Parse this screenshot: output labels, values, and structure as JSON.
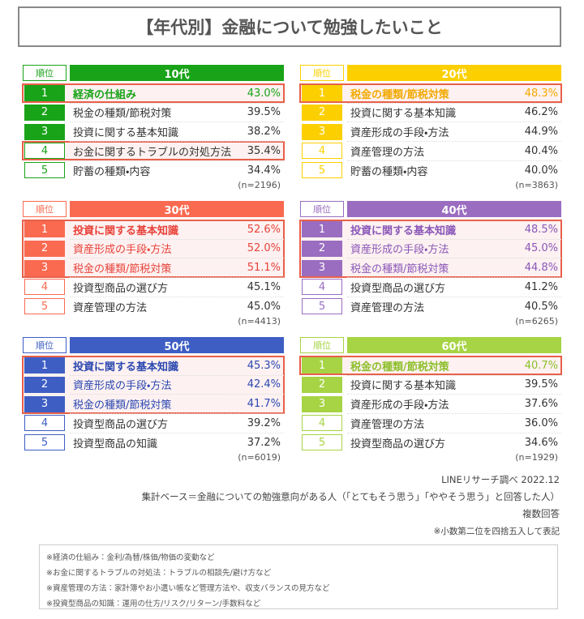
{
  "header": {
    "title": "【年代別】金融について勉強したいこと"
  },
  "panels": [
    {
      "rank_label": "順位",
      "age": "10代",
      "color": "#19a319",
      "text_color": "#19a319",
      "highlighted_rows": [
        [
          0,
          0
        ],
        [
          3,
          3
        ]
      ],
      "emphasized_rows": [
        0
      ],
      "n": "(n=2196)",
      "rows": [
        [
          "1",
          "経済の仕組み",
          "43.0%"
        ],
        [
          "2",
          "税金の種類/節税対策",
          "39.5%"
        ],
        [
          "3",
          "投資に関する基本知識",
          "38.2%"
        ],
        [
          "4",
          "お金に関するトラブルの対処方法",
          "35.4%"
        ],
        [
          "5",
          "貯蓄の種類・内容",
          "34.4%"
        ]
      ]
    },
    {
      "rank_label": "順位",
      "age": "20代",
      "color": "#fcd000",
      "text_color": "#f2a900",
      "highlighted_rows": [
        [
          0,
          0
        ]
      ],
      "emphasized_rows": [
        0
      ],
      "n": "(n=3863)",
      "rows": [
        [
          "1",
          "税金の種類/節税対策",
          "48.3%"
        ],
        [
          "2",
          "投資に関する基本知識",
          "46.2%"
        ],
        [
          "3",
          "資産形成の手段・方法",
          "44.9%"
        ],
        [
          "4",
          "資産管理の方法",
          "40.4%"
        ],
        [
          "5",
          "貯蓄の種類・内容",
          "40.0%"
        ]
      ]
    },
    {
      "rank_label": "順位",
      "age": "30代",
      "color": "#f96a51",
      "text_color": "#e8433a",
      "highlighted_rows": [
        [
          0,
          2
        ]
      ],
      "emphasized_rows": [
        0
      ],
      "n": "(n=4413)",
      "rows": [
        [
          "1",
          "投資に関する基本知識",
          "52.6%"
        ],
        [
          "2",
          "資産形成の手段・方法",
          "52.0%"
        ],
        [
          "3",
          "税金の種類/節税対策",
          "51.1%"
        ],
        [
          "4",
          "投資型商品の選び方",
          "45.1%"
        ],
        [
          "5",
          "資産管理の方法",
          "45.0%"
        ]
      ]
    },
    {
      "rank_label": "順位",
      "age": "40代",
      "color": "#9a6dc0",
      "text_color": "#8a58b8",
      "highlighted_rows": [
        [
          0,
          2
        ]
      ],
      "emphasized_rows": [
        0
      ],
      "n": "(n=6265)",
      "rows": [
        [
          "1",
          "投資に関する基本知識",
          "48.5%"
        ],
        [
          "2",
          "資産形成の手段・方法",
          "45.0%"
        ],
        [
          "3",
          "税金の種類/節税対策",
          "44.8%"
        ],
        [
          "4",
          "投資型商品の選び方",
          "41.2%"
        ],
        [
          "5",
          "資産管理の方法",
          "40.5%"
        ]
      ]
    },
    {
      "rank_label": "順位",
      "age": "50代",
      "color": "#3e5ec4",
      "text_color": "#2b48b0",
      "highlighted_rows": [
        [
          0,
          2
        ]
      ],
      "emphasized_rows": [
        0
      ],
      "n": "(n=6019)",
      "rows": [
        [
          "1",
          "投資に関する基本知識",
          "45.3%"
        ],
        [
          "2",
          "資産形成の手段・方法",
          "42.4%"
        ],
        [
          "3",
          "税金の種類/節税対策",
          "41.7%"
        ],
        [
          "4",
          "投資型商品の選び方",
          "39.2%"
        ],
        [
          "5",
          "投資型商品の知識",
          "37.2%"
        ]
      ]
    },
    {
      "rank_label": "順位",
      "age": "60代",
      "color": "#a6d444",
      "text_color": "#8cbf2a",
      "highlighted_rows": [
        [
          0,
          0
        ]
      ],
      "emphasized_rows": [
        0
      ],
      "n": "(n=1929)",
      "rows": [
        [
          "1",
          "税金の種類/節税対策",
          "40.7%"
        ],
        [
          "2",
          "投資に関する基本知識",
          "39.5%"
        ],
        [
          "3",
          "資産形成の手段・方法",
          "37.6%"
        ],
        [
          "4",
          "資産管理の方法",
          "36.0%"
        ],
        [
          "5",
          "投資型商品の選び方",
          "34.6%"
        ]
      ]
    }
  ],
  "footer": [
    "LINEリサーチ調べ 2022.12",
    "集計ベース＝金融についての勉強意向がある人（「とてもそう思う」「ややそう思う」と回答した人）",
    "複数回答",
    "※小数第二位を四捨五入して表記"
  ],
  "notes": [
    "※経済の仕組み：金利/為替/株価/物価の変動など",
    "※お金に関するトラブルの対処法：トラブルの相談先/避け方など",
    "※資産管理の方法：家計簿やお小遣い帳など管理方法や、収支バランスの見方など",
    "※投資型商品の知識：運用の仕方/リスク/リターン/手数料など"
  ]
}
